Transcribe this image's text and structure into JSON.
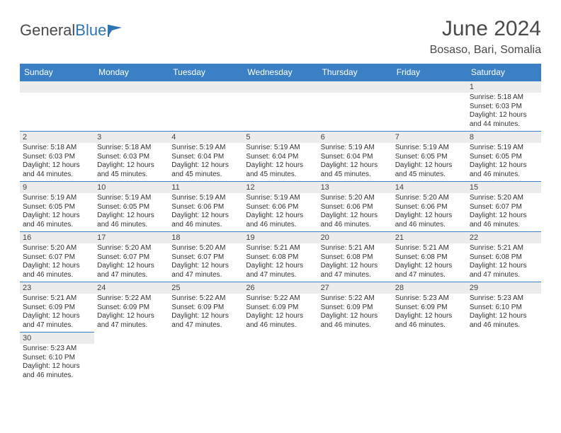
{
  "brand": {
    "part1": "General",
    "part2": "Blue"
  },
  "title": "June 2024",
  "location": "Bosaso, Bari, Somalia",
  "colors": {
    "header_bg": "#3b7fc4",
    "header_fg": "#ffffff",
    "daynum_bg": "#ececec",
    "border": "#3b7fc4",
    "text": "#333333",
    "brand_gray": "#4a4a4a",
    "brand_blue": "#2f74b5"
  },
  "dayNames": [
    "Sunday",
    "Monday",
    "Tuesday",
    "Wednesday",
    "Thursday",
    "Friday",
    "Saturday"
  ],
  "weeks": [
    [
      null,
      null,
      null,
      null,
      null,
      null,
      {
        "n": "1",
        "sr": "Sunrise: 5:18 AM",
        "ss": "Sunset: 6:03 PM",
        "d1": "Daylight: 12 hours",
        "d2": "and 44 minutes."
      }
    ],
    [
      {
        "n": "2",
        "sr": "Sunrise: 5:18 AM",
        "ss": "Sunset: 6:03 PM",
        "d1": "Daylight: 12 hours",
        "d2": "and 44 minutes."
      },
      {
        "n": "3",
        "sr": "Sunrise: 5:18 AM",
        "ss": "Sunset: 6:03 PM",
        "d1": "Daylight: 12 hours",
        "d2": "and 45 minutes."
      },
      {
        "n": "4",
        "sr": "Sunrise: 5:19 AM",
        "ss": "Sunset: 6:04 PM",
        "d1": "Daylight: 12 hours",
        "d2": "and 45 minutes."
      },
      {
        "n": "5",
        "sr": "Sunrise: 5:19 AM",
        "ss": "Sunset: 6:04 PM",
        "d1": "Daylight: 12 hours",
        "d2": "and 45 minutes."
      },
      {
        "n": "6",
        "sr": "Sunrise: 5:19 AM",
        "ss": "Sunset: 6:04 PM",
        "d1": "Daylight: 12 hours",
        "d2": "and 45 minutes."
      },
      {
        "n": "7",
        "sr": "Sunrise: 5:19 AM",
        "ss": "Sunset: 6:05 PM",
        "d1": "Daylight: 12 hours",
        "d2": "and 45 minutes."
      },
      {
        "n": "8",
        "sr": "Sunrise: 5:19 AM",
        "ss": "Sunset: 6:05 PM",
        "d1": "Daylight: 12 hours",
        "d2": "and 46 minutes."
      }
    ],
    [
      {
        "n": "9",
        "sr": "Sunrise: 5:19 AM",
        "ss": "Sunset: 6:05 PM",
        "d1": "Daylight: 12 hours",
        "d2": "and 46 minutes."
      },
      {
        "n": "10",
        "sr": "Sunrise: 5:19 AM",
        "ss": "Sunset: 6:05 PM",
        "d1": "Daylight: 12 hours",
        "d2": "and 46 minutes."
      },
      {
        "n": "11",
        "sr": "Sunrise: 5:19 AM",
        "ss": "Sunset: 6:06 PM",
        "d1": "Daylight: 12 hours",
        "d2": "and 46 minutes."
      },
      {
        "n": "12",
        "sr": "Sunrise: 5:19 AM",
        "ss": "Sunset: 6:06 PM",
        "d1": "Daylight: 12 hours",
        "d2": "and 46 minutes."
      },
      {
        "n": "13",
        "sr": "Sunrise: 5:20 AM",
        "ss": "Sunset: 6:06 PM",
        "d1": "Daylight: 12 hours",
        "d2": "and 46 minutes."
      },
      {
        "n": "14",
        "sr": "Sunrise: 5:20 AM",
        "ss": "Sunset: 6:06 PM",
        "d1": "Daylight: 12 hours",
        "d2": "and 46 minutes."
      },
      {
        "n": "15",
        "sr": "Sunrise: 5:20 AM",
        "ss": "Sunset: 6:07 PM",
        "d1": "Daylight: 12 hours",
        "d2": "and 46 minutes."
      }
    ],
    [
      {
        "n": "16",
        "sr": "Sunrise: 5:20 AM",
        "ss": "Sunset: 6:07 PM",
        "d1": "Daylight: 12 hours",
        "d2": "and 46 minutes."
      },
      {
        "n": "17",
        "sr": "Sunrise: 5:20 AM",
        "ss": "Sunset: 6:07 PM",
        "d1": "Daylight: 12 hours",
        "d2": "and 47 minutes."
      },
      {
        "n": "18",
        "sr": "Sunrise: 5:20 AM",
        "ss": "Sunset: 6:07 PM",
        "d1": "Daylight: 12 hours",
        "d2": "and 47 minutes."
      },
      {
        "n": "19",
        "sr": "Sunrise: 5:21 AM",
        "ss": "Sunset: 6:08 PM",
        "d1": "Daylight: 12 hours",
        "d2": "and 47 minutes."
      },
      {
        "n": "20",
        "sr": "Sunrise: 5:21 AM",
        "ss": "Sunset: 6:08 PM",
        "d1": "Daylight: 12 hours",
        "d2": "and 47 minutes."
      },
      {
        "n": "21",
        "sr": "Sunrise: 5:21 AM",
        "ss": "Sunset: 6:08 PM",
        "d1": "Daylight: 12 hours",
        "d2": "and 47 minutes."
      },
      {
        "n": "22",
        "sr": "Sunrise: 5:21 AM",
        "ss": "Sunset: 6:08 PM",
        "d1": "Daylight: 12 hours",
        "d2": "and 47 minutes."
      }
    ],
    [
      {
        "n": "23",
        "sr": "Sunrise: 5:21 AM",
        "ss": "Sunset: 6:09 PM",
        "d1": "Daylight: 12 hours",
        "d2": "and 47 minutes."
      },
      {
        "n": "24",
        "sr": "Sunrise: 5:22 AM",
        "ss": "Sunset: 6:09 PM",
        "d1": "Daylight: 12 hours",
        "d2": "and 47 minutes."
      },
      {
        "n": "25",
        "sr": "Sunrise: 5:22 AM",
        "ss": "Sunset: 6:09 PM",
        "d1": "Daylight: 12 hours",
        "d2": "and 47 minutes."
      },
      {
        "n": "26",
        "sr": "Sunrise: 5:22 AM",
        "ss": "Sunset: 6:09 PM",
        "d1": "Daylight: 12 hours",
        "d2": "and 46 minutes."
      },
      {
        "n": "27",
        "sr": "Sunrise: 5:22 AM",
        "ss": "Sunset: 6:09 PM",
        "d1": "Daylight: 12 hours",
        "d2": "and 46 minutes."
      },
      {
        "n": "28",
        "sr": "Sunrise: 5:23 AM",
        "ss": "Sunset: 6:09 PM",
        "d1": "Daylight: 12 hours",
        "d2": "and 46 minutes."
      },
      {
        "n": "29",
        "sr": "Sunrise: 5:23 AM",
        "ss": "Sunset: 6:10 PM",
        "d1": "Daylight: 12 hours",
        "d2": "and 46 minutes."
      }
    ],
    [
      {
        "n": "30",
        "sr": "Sunrise: 5:23 AM",
        "ss": "Sunset: 6:10 PM",
        "d1": "Daylight: 12 hours",
        "d2": "and 46 minutes."
      },
      null,
      null,
      null,
      null,
      null,
      null
    ]
  ]
}
